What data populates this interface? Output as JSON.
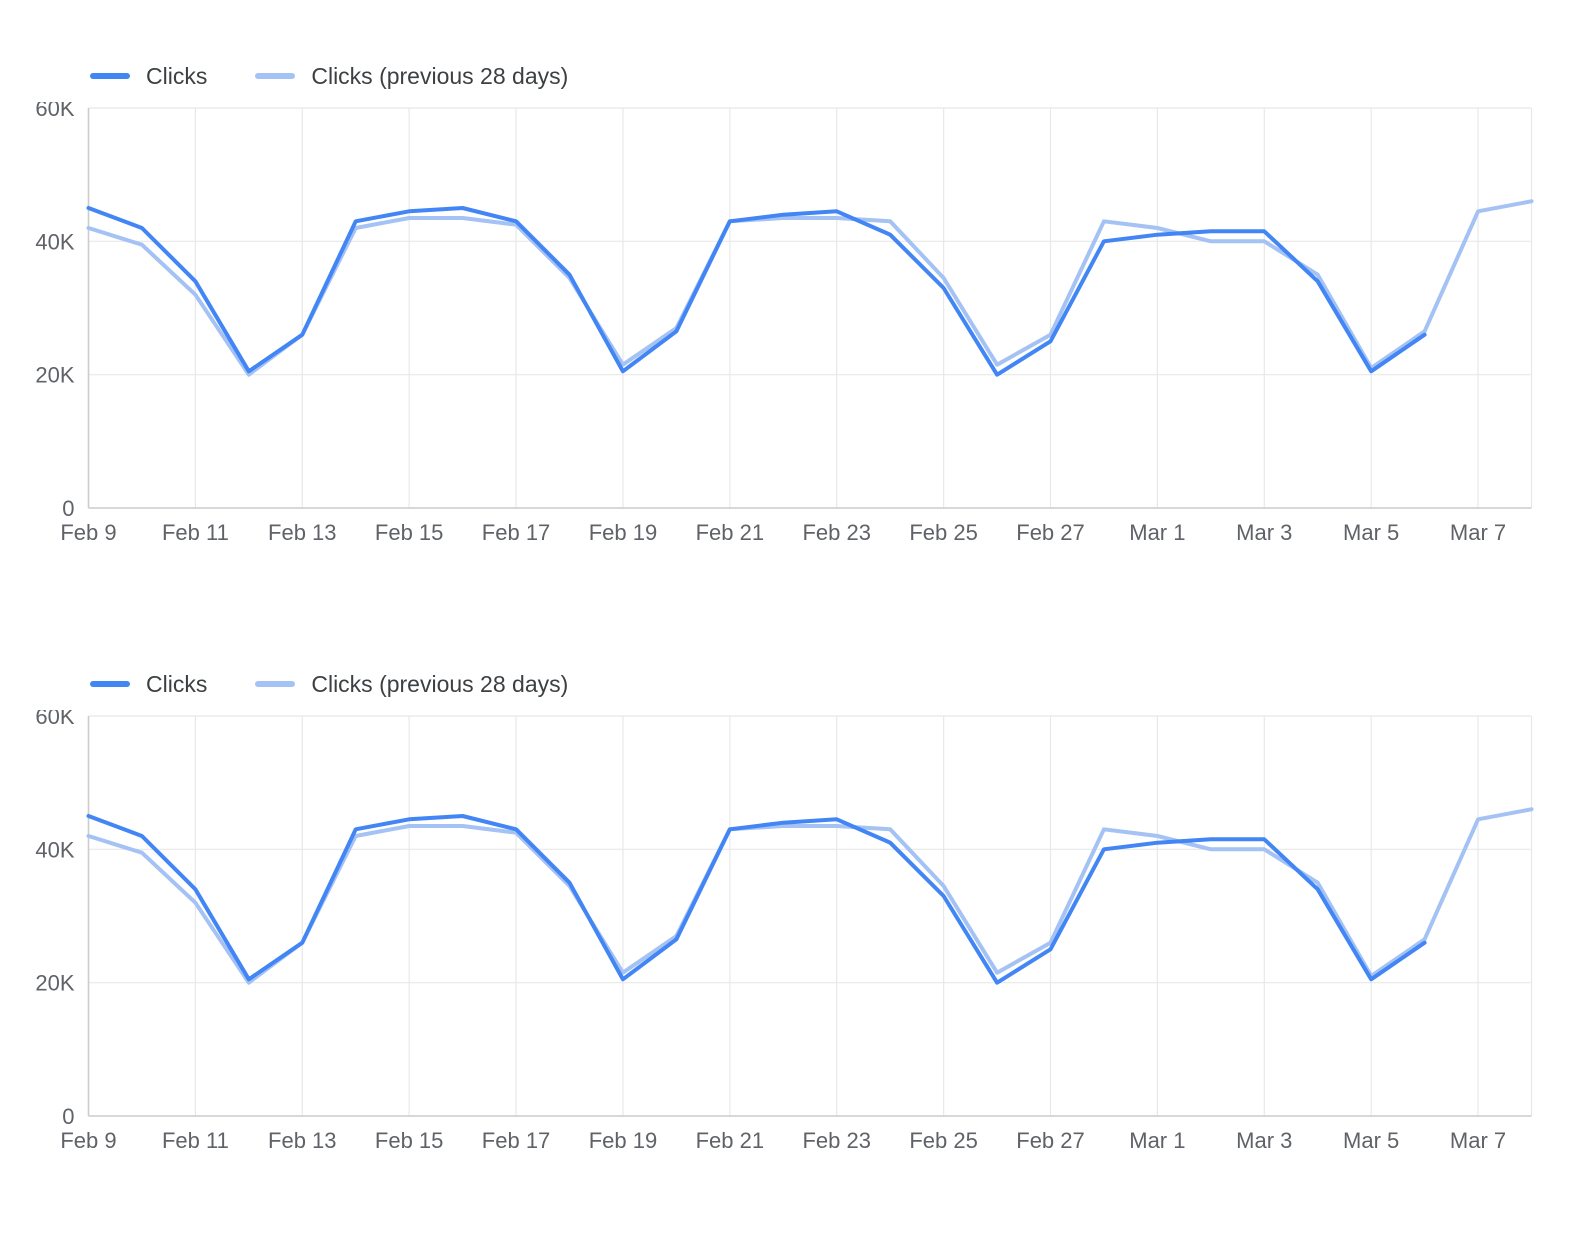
{
  "chart_data": [
    {
      "type": "line",
      "title": "",
      "xlabel": "",
      "ylabel": "",
      "ylim": [
        0,
        60000
      ],
      "yticks": [
        0,
        20000,
        40000,
        60000
      ],
      "ytick_labels": [
        "0",
        "20K",
        "40K",
        "60K"
      ],
      "grid": true,
      "legend_position": "top-left",
      "x": [
        "Feb 9",
        "Feb 10",
        "Feb 11",
        "Feb 12",
        "Feb 13",
        "Feb 14",
        "Feb 15",
        "Feb 16",
        "Feb 17",
        "Feb 18",
        "Feb 19",
        "Feb 20",
        "Feb 21",
        "Feb 22",
        "Feb 23",
        "Feb 24",
        "Feb 25",
        "Feb 26",
        "Feb 27",
        "Feb 28",
        "Mar 1",
        "Mar 2",
        "Mar 3",
        "Mar 4",
        "Mar 5",
        "Mar 6",
        "Mar 7",
        "Mar 8"
      ],
      "xtick_labels": [
        "Feb 9",
        "Feb 11",
        "Feb 13",
        "Feb 15",
        "Feb 17",
        "Feb 19",
        "Feb 21",
        "Feb 23",
        "Feb 25",
        "Feb 27",
        "Mar 1",
        "Mar 3",
        "Mar 5",
        "Mar 7"
      ],
      "series": [
        {
          "name": "Clicks",
          "color": "#4285F4",
          "values": [
            45000,
            42000,
            34000,
            20500,
            26000,
            43000,
            44500,
            45000,
            43000,
            35000,
            20500,
            26500,
            43000,
            44000,
            44500,
            41000,
            33000,
            20000,
            25000,
            40000,
            41000,
            41500,
            41500,
            34000,
            20500,
            26000,
            null,
            null
          ]
        },
        {
          "name": "Clicks (previous 28 days)",
          "color": "#A4C2F4",
          "values": [
            42000,
            39500,
            32000,
            20000,
            26000,
            42000,
            43500,
            43500,
            42500,
            34500,
            21500,
            27000,
            43000,
            43500,
            43500,
            43000,
            34500,
            21500,
            26000,
            43000,
            42000,
            40000,
            40000,
            35000,
            21000,
            26500,
            44500,
            46000
          ]
        }
      ]
    },
    {
      "type": "line",
      "title": "",
      "xlabel": "",
      "ylabel": "",
      "ylim": [
        0,
        60000
      ],
      "yticks": [
        0,
        20000,
        40000,
        60000
      ],
      "ytick_labels": [
        "0",
        "20K",
        "40K",
        "60K"
      ],
      "grid": true,
      "legend_position": "top-left",
      "x": [
        "Feb 9",
        "Feb 10",
        "Feb 11",
        "Feb 12",
        "Feb 13",
        "Feb 14",
        "Feb 15",
        "Feb 16",
        "Feb 17",
        "Feb 18",
        "Feb 19",
        "Feb 20",
        "Feb 21",
        "Feb 22",
        "Feb 23",
        "Feb 24",
        "Feb 25",
        "Feb 26",
        "Feb 27",
        "Feb 28",
        "Mar 1",
        "Mar 2",
        "Mar 3",
        "Mar 4",
        "Mar 5",
        "Mar 6",
        "Mar 7",
        "Mar 8"
      ],
      "xtick_labels": [
        "Feb 9",
        "Feb 11",
        "Feb 13",
        "Feb 15",
        "Feb 17",
        "Feb 19",
        "Feb 21",
        "Feb 23",
        "Feb 25",
        "Feb 27",
        "Mar 1",
        "Mar 3",
        "Mar 5",
        "Mar 7"
      ],
      "series": [
        {
          "name": "Clicks",
          "color": "#4285F4",
          "values": [
            45000,
            42000,
            34000,
            20500,
            26000,
            43000,
            44500,
            45000,
            43000,
            35000,
            20500,
            26500,
            43000,
            44000,
            44500,
            41000,
            33000,
            20000,
            25000,
            40000,
            41000,
            41500,
            41500,
            34000,
            20500,
            26000,
            null,
            null
          ]
        },
        {
          "name": "Clicks (previous 28 days)",
          "color": "#A4C2F4",
          "values": [
            42000,
            39500,
            32000,
            20000,
            26000,
            42000,
            43500,
            43500,
            42500,
            34500,
            21500,
            27000,
            43000,
            43500,
            43500,
            43000,
            34500,
            21500,
            26000,
            43000,
            42000,
            40000,
            40000,
            35000,
            21000,
            26500,
            44500,
            46000
          ]
        }
      ]
    }
  ]
}
